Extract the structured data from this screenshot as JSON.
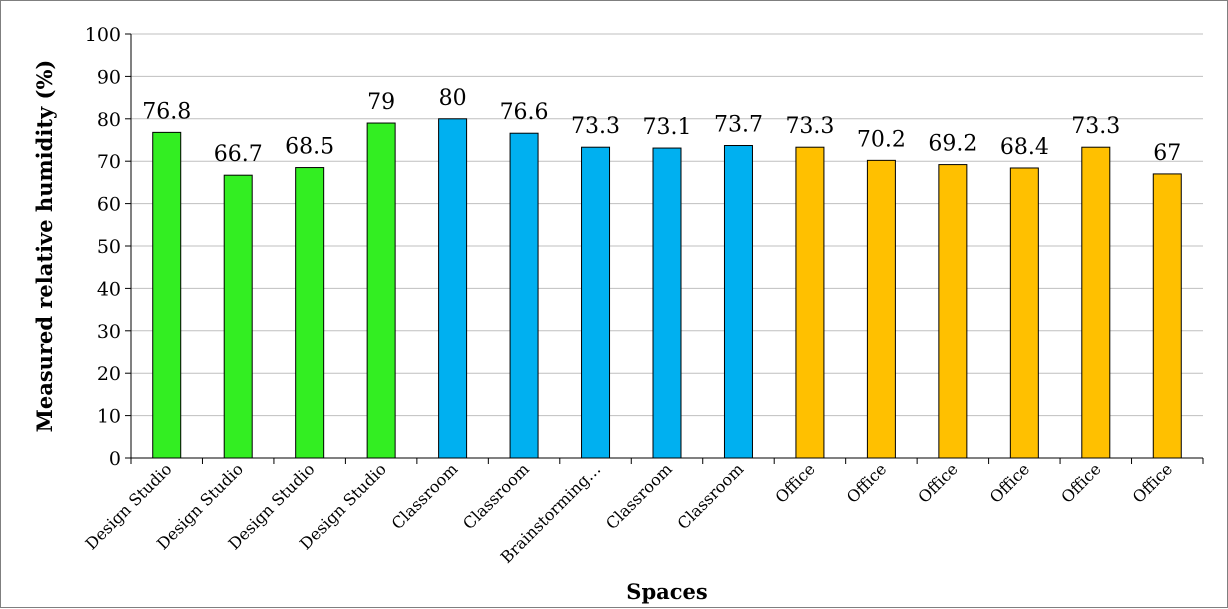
{
  "chart_data": {
    "type": "bar",
    "categories": [
      "Design Studio",
      "Design Studio",
      "Design Studio",
      "Design Studio",
      "Classroom",
      "Classroom",
      "Brainstorming…",
      "Classroom",
      "Classroom",
      "Office",
      "Office",
      "Office",
      "Office",
      "Office",
      "Office"
    ],
    "values": [
      76.8,
      66.7,
      68.5,
      79,
      80,
      76.6,
      73.3,
      73.1,
      73.7,
      73.3,
      70.2,
      69.2,
      68.4,
      73.3,
      67
    ],
    "data_labels": [
      "76.8",
      "66.7",
      "68.5",
      "79",
      "80",
      "76.6",
      "73.3",
      "73.1",
      "73.7",
      "73.3",
      "70.2",
      "69.2",
      "68.4",
      "73.3",
      "67"
    ],
    "bar_colors": [
      "#33ee22",
      "#33ee22",
      "#33ee22",
      "#33ee22",
      "#00b0f0",
      "#00b0f0",
      "#00b0f0",
      "#00b0f0",
      "#00b0f0",
      "#ffc000",
      "#ffc000",
      "#ffc000",
      "#ffc000",
      "#ffc000",
      "#ffc000"
    ],
    "title": "",
    "xlabel": "Spaces",
    "ylabel": "Measured relative humidity (%)",
    "ylim": [
      0,
      100
    ],
    "yticks": [
      0,
      10,
      20,
      30,
      40,
      50,
      60,
      70,
      80,
      90,
      100
    ],
    "grid": true,
    "legend": "none"
  }
}
